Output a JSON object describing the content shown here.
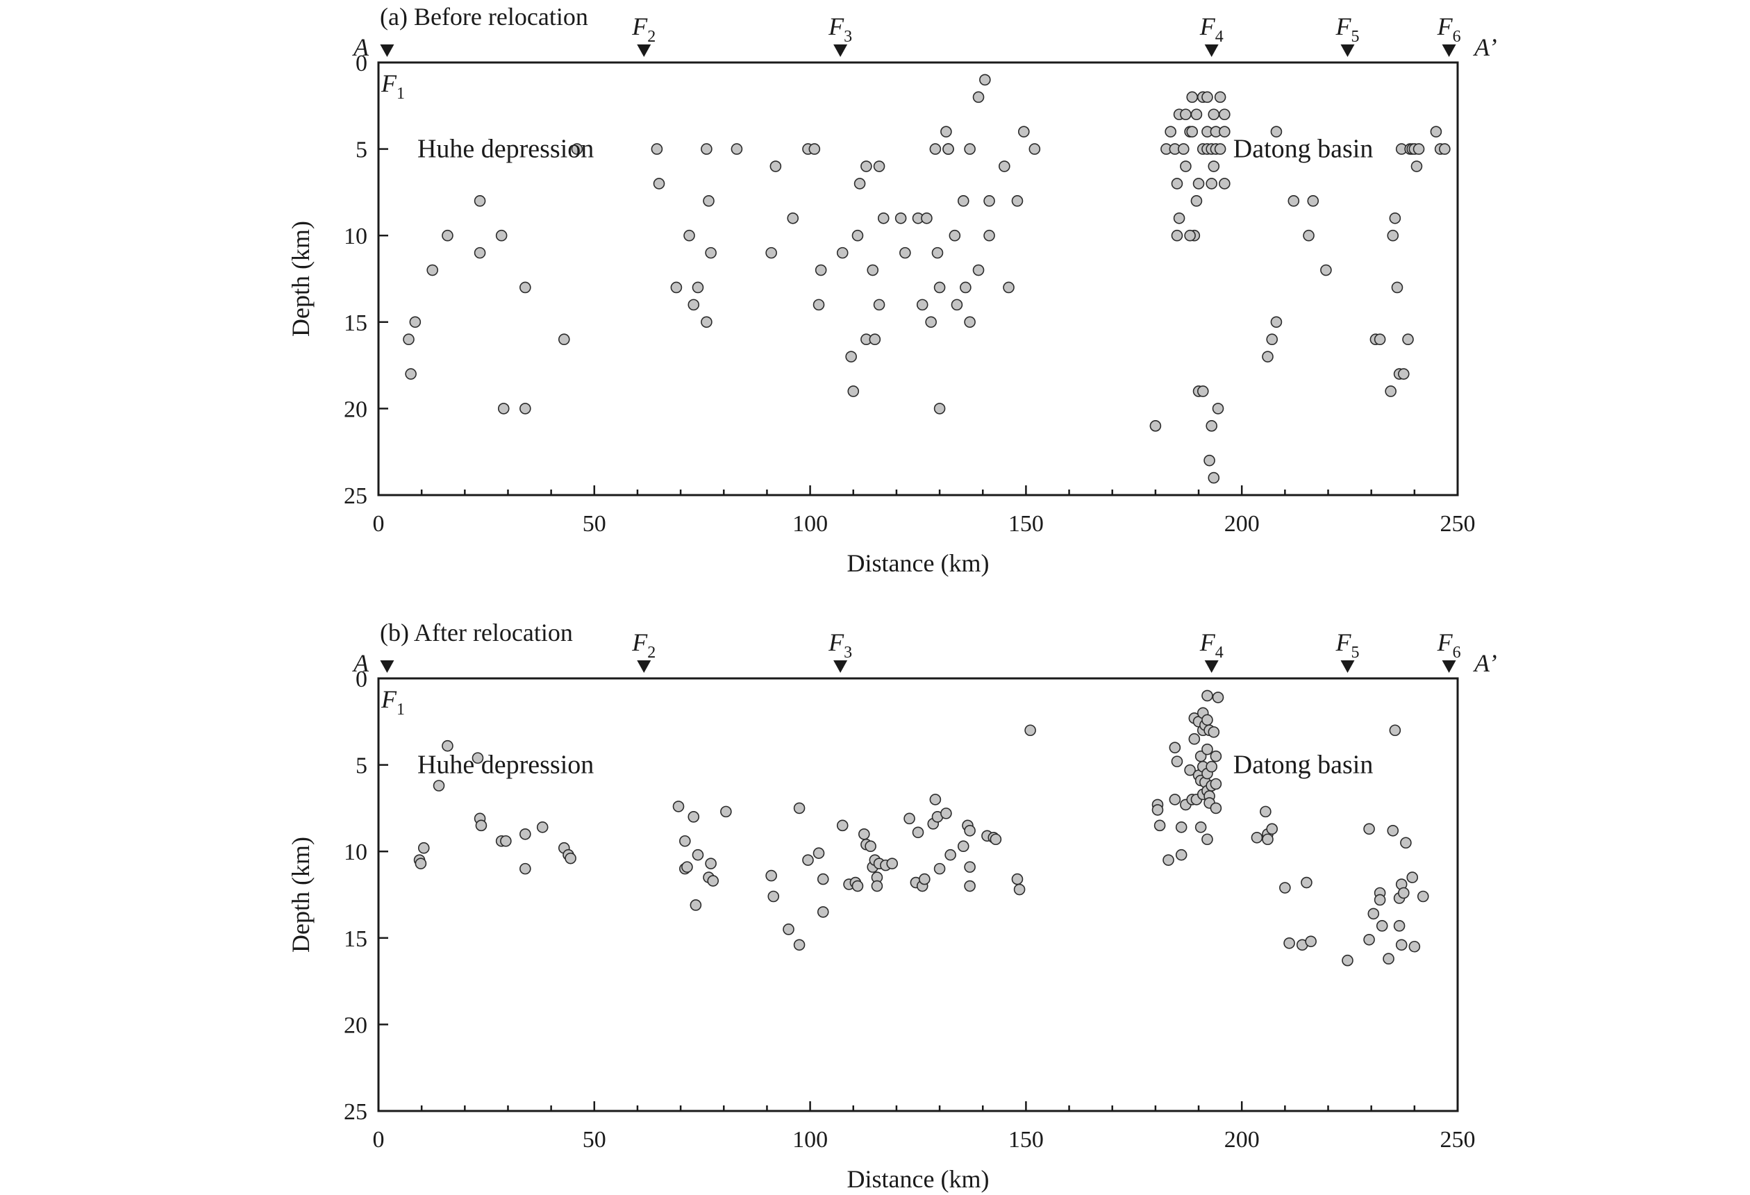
{
  "chart_data": [
    {
      "type": "scatter",
      "title": "(a) Before relocation",
      "xlabel": "Distance (km)",
      "ylabel": "Depth (km)",
      "xlim": [
        0,
        250
      ],
      "ylim": [
        0,
        25
      ],
      "y_inverted": true,
      "grid": false,
      "x_ticks": [
        "0",
        "50",
        "100",
        "150",
        "200",
        "250"
      ],
      "y_ticks": [
        "0",
        "5",
        "10",
        "15",
        "20",
        "25"
      ],
      "profile_start": "A",
      "profile_end": "A’",
      "annotations": [
        {
          "text": "Huhe depression",
          "x": 9,
          "y": 5
        },
        {
          "text": "Datong basin",
          "x": 198,
          "y": 5
        }
      ],
      "fault_markers": [
        {
          "label": "F",
          "sub": "1",
          "x": 2
        },
        {
          "label": "F",
          "sub": "2",
          "x": 61.5
        },
        {
          "label": "F",
          "sub": "3",
          "x": 107
        },
        {
          "label": "F",
          "sub": "4",
          "x": 193
        },
        {
          "label": "F",
          "sub": "5",
          "x": 224.5
        },
        {
          "label": "F",
          "sub": "6",
          "x": 248
        }
      ],
      "points": [
        [
          7,
          16
        ],
        [
          7.5,
          18
        ],
        [
          8.5,
          15
        ],
        [
          12.5,
          12
        ],
        [
          16,
          10
        ],
        [
          23.5,
          8
        ],
        [
          23.5,
          11
        ],
        [
          28.5,
          10
        ],
        [
          29,
          20
        ],
        [
          34,
          13
        ],
        [
          34,
          20
        ],
        [
          43,
          16
        ],
        [
          46,
          5
        ],
        [
          64.5,
          5
        ],
        [
          65,
          7
        ],
        [
          69,
          13
        ],
        [
          72,
          10
        ],
        [
          73,
          14
        ],
        [
          74,
          13
        ],
        [
          76,
          15
        ],
        [
          76,
          5
        ],
        [
          76.5,
          8
        ],
        [
          77,
          11
        ],
        [
          83,
          5
        ],
        [
          91,
          11
        ],
        [
          92,
          6
        ],
        [
          96,
          9
        ],
        [
          99.5,
          5
        ],
        [
          101,
          5
        ],
        [
          102,
          14
        ],
        [
          102.5,
          12
        ],
        [
          107.5,
          11
        ],
        [
          109.5,
          17
        ],
        [
          110,
          19
        ],
        [
          111,
          10
        ],
        [
          111.5,
          7
        ],
        [
          113,
          6
        ],
        [
          113,
          16
        ],
        [
          114.5,
          12
        ],
        [
          115,
          16
        ],
        [
          116,
          14
        ],
        [
          116,
          6
        ],
        [
          117,
          9
        ],
        [
          121,
          9
        ],
        [
          122,
          11
        ],
        [
          125,
          9
        ],
        [
          126,
          14
        ],
        [
          127,
          9
        ],
        [
          128,
          15
        ],
        [
          129,
          5
        ],
        [
          129.5,
          11
        ],
        [
          130,
          20
        ],
        [
          130,
          13
        ],
        [
          131.5,
          4
        ],
        [
          132,
          5
        ],
        [
          132,
          5
        ],
        [
          133.5,
          10
        ],
        [
          134,
          14
        ],
        [
          135.5,
          8
        ],
        [
          136,
          13
        ],
        [
          137,
          15
        ],
        [
          137,
          5
        ],
        [
          139,
          2
        ],
        [
          139,
          12
        ],
        [
          140.5,
          1
        ],
        [
          141.5,
          8
        ],
        [
          141.5,
          10
        ],
        [
          145,
          6
        ],
        [
          146,
          13
        ],
        [
          148,
          8
        ],
        [
          149.5,
          4
        ],
        [
          152,
          5
        ],
        [
          180,
          21
        ],
        [
          182.5,
          5
        ],
        [
          183.5,
          4
        ],
        [
          184.5,
          5
        ],
        [
          185,
          7
        ],
        [
          185.5,
          3
        ],
        [
          185,
          10
        ],
        [
          185.5,
          9
        ],
        [
          186.5,
          5
        ],
        [
          187,
          6
        ],
        [
          187,
          3
        ],
        [
          188,
          4
        ],
        [
          188.5,
          4
        ],
        [
          188.5,
          2
        ],
        [
          189,
          10
        ],
        [
          188,
          10
        ],
        [
          189.5,
          8
        ],
        [
          189.5,
          3
        ],
        [
          190,
          7
        ],
        [
          190,
          19
        ],
        [
          191,
          19
        ],
        [
          191,
          5
        ],
        [
          191,
          2
        ],
        [
          192,
          2
        ],
        [
          192,
          5
        ],
        [
          192,
          4
        ],
        [
          192.5,
          23
        ],
        [
          193,
          7
        ],
        [
          193,
          21
        ],
        [
          193,
          5
        ],
        [
          193.5,
          24
        ],
        [
          193.5,
          6
        ],
        [
          193.5,
          3
        ],
        [
          194,
          4
        ],
        [
          194,
          5
        ],
        [
          194.5,
          20
        ],
        [
          195,
          2
        ],
        [
          195,
          5
        ],
        [
          196,
          3
        ],
        [
          196,
          4
        ],
        [
          196,
          7
        ],
        [
          206,
          17
        ],
        [
          207,
          16
        ],
        [
          208,
          15
        ],
        [
          208,
          4
        ],
        [
          212,
          8
        ],
        [
          215.5,
          10
        ],
        [
          216.5,
          8
        ],
        [
          219.5,
          12
        ],
        [
          231,
          16
        ],
        [
          232,
          16
        ],
        [
          234.5,
          19
        ],
        [
          235,
          10
        ],
        [
          235.5,
          9
        ],
        [
          236,
          13
        ],
        [
          236.5,
          18
        ],
        [
          237,
          5
        ],
        [
          237.5,
          18
        ],
        [
          238.5,
          16
        ],
        [
          239,
          5
        ],
        [
          239.5,
          5
        ],
        [
          240,
          5
        ],
        [
          240.5,
          6
        ],
        [
          241,
          5
        ],
        [
          245,
          4
        ],
        [
          246,
          5
        ],
        [
          247,
          5
        ]
      ]
    },
    {
      "type": "scatter",
      "title": "(b) After relocation",
      "xlabel": "Distance (km)",
      "ylabel": "Depth (km)",
      "xlim": [
        0,
        250
      ],
      "ylim": [
        0,
        25
      ],
      "y_inverted": true,
      "grid": false,
      "x_ticks": [
        "0",
        "50",
        "100",
        "150",
        "200",
        "250"
      ],
      "y_ticks": [
        "0",
        "5",
        "10",
        "15",
        "20",
        "25"
      ],
      "profile_start": "A",
      "profile_end": "A’",
      "annotations": [
        {
          "text": "Huhe depression",
          "x": 9,
          "y": 5
        },
        {
          "text": "Datong basin",
          "x": 198,
          "y": 5
        }
      ],
      "fault_markers": [
        {
          "label": "F",
          "sub": "1",
          "x": 2
        },
        {
          "label": "F",
          "sub": "2",
          "x": 61.5
        },
        {
          "label": "F",
          "sub": "3",
          "x": 107
        },
        {
          "label": "F",
          "sub": "4",
          "x": 193
        },
        {
          "label": "F",
          "sub": "5",
          "x": 224.5
        },
        {
          "label": "F",
          "sub": "6",
          "x": 248
        }
      ],
      "points": [
        [
          9.5,
          10.5
        ],
        [
          9.8,
          10.7
        ],
        [
          10.5,
          9.8
        ],
        [
          14,
          6.2
        ],
        [
          16,
          3.9
        ],
        [
          23,
          4.6
        ],
        [
          23.5,
          8.1
        ],
        [
          23.8,
          8.5
        ],
        [
          28.5,
          9.4
        ],
        [
          29.5,
          9.4
        ],
        [
          34,
          9
        ],
        [
          34,
          11
        ],
        [
          38,
          8.6
        ],
        [
          43,
          9.8
        ],
        [
          44,
          10.2
        ],
        [
          44.5,
          10.4
        ],
        [
          69.5,
          7.4
        ],
        [
          71,
          9.4
        ],
        [
          71,
          11
        ],
        [
          71.5,
          10.9
        ],
        [
          73,
          8
        ],
        [
          73.5,
          13.1
        ],
        [
          74,
          10.2
        ],
        [
          76.5,
          11.5
        ],
        [
          77,
          10.7
        ],
        [
          77.5,
          11.7
        ],
        [
          80.5,
          7.7
        ],
        [
          91,
          11.4
        ],
        [
          91.5,
          12.6
        ],
        [
          95,
          14.5
        ],
        [
          97.5,
          15.4
        ],
        [
          97.5,
          7.5
        ],
        [
          99.5,
          10.5
        ],
        [
          102,
          10.1
        ],
        [
          103,
          11.6
        ],
        [
          103,
          13.5
        ],
        [
          107.5,
          8.5
        ],
        [
          109,
          11.9
        ],
        [
          110.5,
          11.8
        ],
        [
          111,
          12
        ],
        [
          112.5,
          9
        ],
        [
          113,
          9.6
        ],
        [
          114,
          9.7
        ],
        [
          114.5,
          10.9
        ],
        [
          115,
          10.5
        ],
        [
          115.5,
          11.5
        ],
        [
          115.5,
          12
        ],
        [
          116,
          10.7
        ],
        [
          117.5,
          10.8
        ],
        [
          119,
          10.7
        ],
        [
          123,
          8.1
        ],
        [
          124.5,
          11.8
        ],
        [
          125,
          8.9
        ],
        [
          126,
          12
        ],
        [
          126.5,
          11.6
        ],
        [
          128.5,
          8.4
        ],
        [
          129,
          7
        ],
        [
          129.5,
          8
        ],
        [
          130,
          11
        ],
        [
          131.5,
          7.8
        ],
        [
          132.5,
          10.2
        ],
        [
          135.5,
          9.7
        ],
        [
          136.5,
          8.5
        ],
        [
          137,
          8.8
        ],
        [
          137,
          12
        ],
        [
          137,
          10.9
        ],
        [
          141,
          9.1
        ],
        [
          142.5,
          9.2
        ],
        [
          143,
          9.3
        ],
        [
          148,
          11.6
        ],
        [
          148.5,
          12.2
        ],
        [
          151,
          3
        ],
        [
          180.5,
          7.3
        ],
        [
          180.5,
          7.6
        ],
        [
          181,
          8.5
        ],
        [
          183,
          10.5
        ],
        [
          184.5,
          4
        ],
        [
          184.5,
          7
        ],
        [
          185,
          4.8
        ],
        [
          186,
          8.6
        ],
        [
          186,
          10.2
        ],
        [
          187,
          7.3
        ],
        [
          188,
          5.3
        ],
        [
          188.5,
          7
        ],
        [
          189,
          3.5
        ],
        [
          189,
          2.3
        ],
        [
          189.5,
          7
        ],
        [
          190,
          5.6
        ],
        [
          190,
          2.5
        ],
        [
          190.5,
          4.5
        ],
        [
          190.5,
          5.9
        ],
        [
          190.5,
          8.6
        ],
        [
          191,
          2
        ],
        [
          191,
          3
        ],
        [
          191,
          5.1
        ],
        [
          191,
          6.7
        ],
        [
          191.5,
          2.7
        ],
        [
          191.5,
          6
        ],
        [
          192,
          1
        ],
        [
          192,
          2.4
        ],
        [
          192,
          4.1
        ],
        [
          192,
          5.5
        ],
        [
          192,
          6.5
        ],
        [
          192,
          9.3
        ],
        [
          192.5,
          3
        ],
        [
          192.5,
          6.8
        ],
        [
          192.5,
          7.2
        ],
        [
          193,
          5.1
        ],
        [
          193,
          6.2
        ],
        [
          193.5,
          3.1
        ],
        [
          194,
          7.5
        ],
        [
          194,
          4.5
        ],
        [
          194,
          6.1
        ],
        [
          194.5,
          1.1
        ],
        [
          203.5,
          9.2
        ],
        [
          205.5,
          7.7
        ],
        [
          206,
          9
        ],
        [
          206,
          9.3
        ],
        [
          207,
          8.7
        ],
        [
          210,
          12.1
        ],
        [
          211,
          15.3
        ],
        [
          214,
          15.4
        ],
        [
          215,
          11.8
        ],
        [
          216,
          15.2
        ],
        [
          224.5,
          16.3
        ],
        [
          229.5,
          8.7
        ],
        [
          229.5,
          15.1
        ],
        [
          230.5,
          13.6
        ],
        [
          232,
          12.4
        ],
        [
          232,
          12.8
        ],
        [
          232.5,
          14.3
        ],
        [
          234,
          16.2
        ],
        [
          235,
          8.8
        ],
        [
          235.5,
          3
        ],
        [
          236.5,
          12.7
        ],
        [
          236.5,
          14.3
        ],
        [
          237,
          11.9
        ],
        [
          237,
          15.4
        ],
        [
          237.5,
          12.4
        ],
        [
          238,
          9.5
        ],
        [
          239.5,
          11.5
        ],
        [
          240,
          15.5
        ],
        [
          242,
          12.6
        ]
      ]
    }
  ]
}
